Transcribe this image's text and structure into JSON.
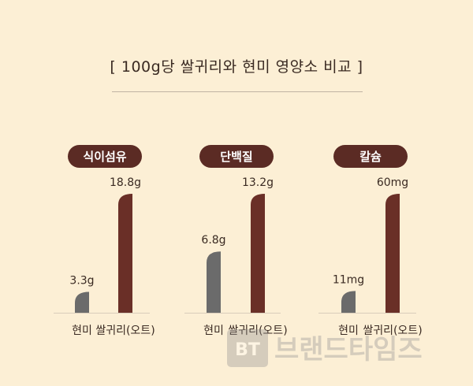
{
  "header": {
    "title": "[ 100g당 쌀귀리와 현미 영양소 비교 ]"
  },
  "colors": {
    "background": "#fcefd5",
    "pill": "#5b2b24",
    "bar_brown_rice": "#6b6b6b",
    "bar_oat": "#6a2f27",
    "baseline": "#d9cdbb",
    "text": "#3a2a22"
  },
  "chart_data": [
    {
      "type": "bar",
      "title": "식이섬유",
      "categories": [
        "현미",
        "쌀귀리(오트)"
      ],
      "values": [
        3.3,
        18.8
      ],
      "value_labels": [
        "3.3g",
        "18.8g"
      ],
      "unit": "g"
    },
    {
      "type": "bar",
      "title": "단백질",
      "categories": [
        "현미",
        "쌀귀리(오트)"
      ],
      "values": [
        6.8,
        13.2
      ],
      "value_labels": [
        "6.8g",
        "13.2g"
      ],
      "unit": "g"
    },
    {
      "type": "bar",
      "title": "칼슘",
      "categories": [
        "현미",
        "쌀귀리(오트)"
      ],
      "values": [
        11,
        60
      ],
      "value_labels": [
        "11mg",
        "60mg"
      ],
      "unit": "mg"
    }
  ],
  "watermark": {
    "text": "브랜드타임즈",
    "logo_letters": "BT"
  }
}
